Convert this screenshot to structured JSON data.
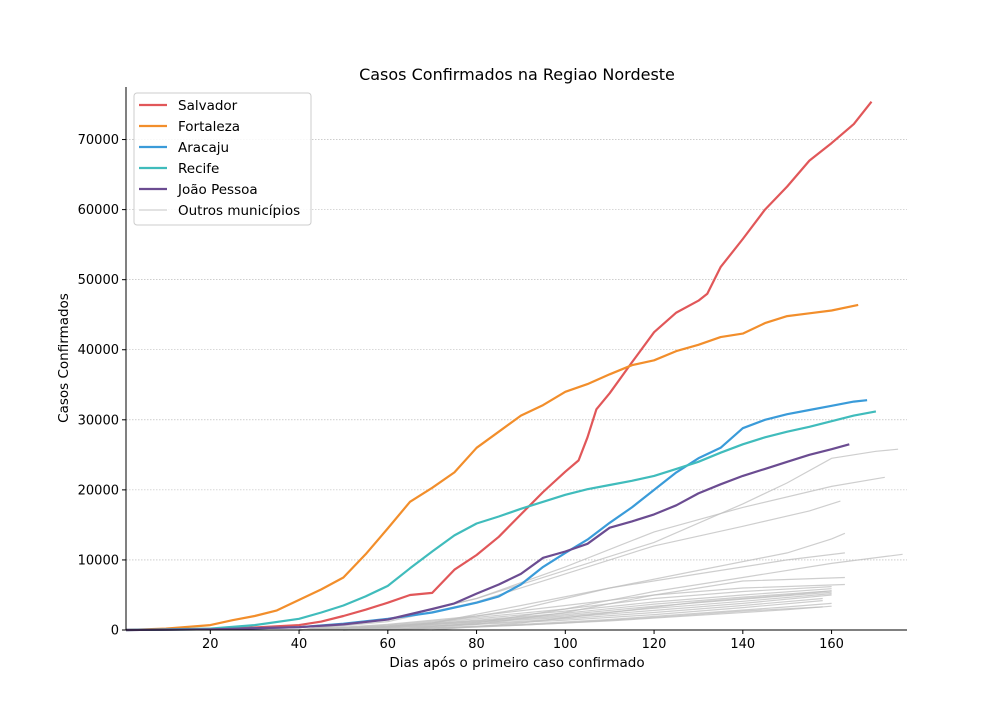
{
  "chart_data": {
    "type": "line",
    "title": "Casos Confirmados na Regiao Nordeste",
    "xlabel": "Dias após o primeiro caso confirmado",
    "ylabel": "Casos Confirmados",
    "xlim": [
      1,
      177
    ],
    "ylim": [
      0,
      77500
    ],
    "x_ticks": [
      20,
      40,
      60,
      80,
      100,
      120,
      140,
      160
    ],
    "y_ticks": [
      0,
      10000,
      20000,
      30000,
      40000,
      50000,
      60000,
      70000
    ],
    "grid": "horizontal dotted",
    "legend_position": "top-left",
    "series": [
      {
        "name": "Salvador",
        "color": "#e15759",
        "x": [
          1,
          10,
          20,
          30,
          40,
          45,
          50,
          55,
          60,
          65,
          70,
          75,
          80,
          85,
          90,
          95,
          100,
          103,
          105,
          107,
          110,
          115,
          120,
          125,
          130,
          132,
          135,
          140,
          145,
          150,
          155,
          160,
          165,
          169
        ],
        "y": [
          0,
          50,
          150,
          350,
          700,
          1200,
          2000,
          2900,
          3900,
          5000,
          5300,
          8600,
          10700,
          13300,
          16500,
          19700,
          22600,
          24200,
          27500,
          31500,
          33800,
          38200,
          42500,
          45300,
          47000,
          48000,
          51800,
          55800,
          60000,
          63300,
          67000,
          69500,
          72200,
          75400
        ]
      },
      {
        "name": "Fortaleza",
        "color": "#f28e2b",
        "x": [
          1,
          10,
          20,
          25,
          30,
          35,
          40,
          45,
          50,
          55,
          60,
          65,
          70,
          75,
          80,
          85,
          90,
          95,
          100,
          105,
          110,
          115,
          120,
          125,
          130,
          135,
          140,
          145,
          150,
          155,
          160,
          166
        ],
        "y": [
          0,
          200,
          700,
          1400,
          2000,
          2800,
          4300,
          5800,
          7500,
          10800,
          14500,
          18300,
          20300,
          22500,
          26000,
          28300,
          30600,
          32100,
          34000,
          35100,
          36500,
          37800,
          38500,
          39800,
          40700,
          41800,
          42300,
          43800,
          44800,
          45200,
          45600,
          46400
        ]
      },
      {
        "name": "Aracaju",
        "color": "#3a9bd9",
        "x": [
          1,
          20,
          40,
          50,
          60,
          70,
          80,
          85,
          90,
          95,
          100,
          105,
          110,
          115,
          120,
          125,
          130,
          135,
          140,
          145,
          150,
          155,
          160,
          165,
          168
        ],
        "y": [
          0,
          100,
          400,
          900,
          1600,
          2500,
          3900,
          4800,
          6500,
          9000,
          11000,
          12900,
          15300,
          17500,
          20000,
          22500,
          24500,
          26000,
          28800,
          30000,
          30800,
          31400,
          32000,
          32600,
          32800
        ]
      },
      {
        "name": "Recife",
        "color": "#40bcbc",
        "x": [
          1,
          20,
          30,
          40,
          45,
          50,
          55,
          60,
          65,
          70,
          75,
          80,
          85,
          90,
          95,
          100,
          105,
          110,
          115,
          120,
          125,
          130,
          135,
          140,
          145,
          150,
          155,
          160,
          165,
          170
        ],
        "y": [
          0,
          200,
          700,
          1600,
          2500,
          3500,
          4800,
          6300,
          8800,
          11200,
          13500,
          15200,
          16200,
          17300,
          18300,
          19300,
          20100,
          20700,
          21300,
          22000,
          23000,
          24000,
          25300,
          26500,
          27500,
          28300,
          29000,
          29800,
          30600,
          31200
        ]
      },
      {
        "name": "João Pessoa",
        "color": "#6b4c91",
        "x": [
          1,
          20,
          40,
          50,
          60,
          70,
          75,
          80,
          85,
          90,
          95,
          100,
          105,
          110,
          115,
          120,
          125,
          130,
          135,
          140,
          145,
          150,
          155,
          160,
          164
        ],
        "y": [
          0,
          100,
          400,
          800,
          1500,
          3000,
          3800,
          5200,
          6500,
          8000,
          10300,
          11200,
          12300,
          14600,
          15500,
          16500,
          17800,
          19500,
          20800,
          22000,
          23000,
          24000,
          25000,
          25800,
          26500
        ]
      }
    ],
    "others": {
      "name": "Outros municípios",
      "color": "#bdbdbd",
      "legend_color": "#d9d9d9",
      "series": [
        {
          "x": [
            40,
            60,
            80,
            100,
            120,
            140,
            150,
            160,
            170,
            175
          ],
          "y": [
            0,
            1500,
            4500,
            8500,
            12500,
            18000,
            21000,
            24500,
            25500,
            25800
          ]
        },
        {
          "x": [
            40,
            60,
            80,
            100,
            120,
            140,
            160,
            172
          ],
          "y": [
            0,
            1500,
            4500,
            9000,
            14000,
            17500,
            20500,
            21800
          ]
        },
        {
          "x": [
            40,
            60,
            80,
            100,
            120,
            140,
            155,
            162
          ],
          "y": [
            0,
            1200,
            4000,
            8000,
            12000,
            14800,
            17000,
            18400
          ]
        },
        {
          "x": [
            50,
            70,
            90,
            110,
            130,
            150,
            160,
            163
          ],
          "y": [
            0,
            1000,
            3500,
            6000,
            8500,
            11000,
            13000,
            13800
          ]
        },
        {
          "x": [
            50,
            70,
            90,
            110,
            130,
            150,
            163
          ],
          "y": [
            0,
            1000,
            3000,
            6000,
            8000,
            10000,
            11000
          ]
        },
        {
          "x": [
            60,
            80,
            100,
            120,
            140,
            160,
            176
          ],
          "y": [
            0,
            1000,
            3000,
            5500,
            7500,
            9500,
            10800
          ]
        },
        {
          "x": [
            60,
            80,
            100,
            120,
            140,
            163
          ],
          "y": [
            0,
            800,
            2500,
            5000,
            7000,
            7500
          ]
        },
        {
          "x": [
            40,
            60,
            80,
            100,
            120,
            140,
            163
          ],
          "y": [
            0,
            800,
            2000,
            3500,
            5000,
            6000,
            6500
          ]
        },
        {
          "x": [
            40,
            60,
            80,
            100,
            120,
            140,
            160
          ],
          "y": [
            0,
            700,
            1800,
            3000,
            4500,
            5500,
            6200
          ]
        },
        {
          "x": [
            40,
            60,
            80,
            100,
            120,
            140,
            160
          ],
          "y": [
            0,
            600,
            1600,
            2700,
            4000,
            5000,
            5900
          ]
        },
        {
          "x": [
            40,
            60,
            80,
            100,
            120,
            140,
            160
          ],
          "y": [
            0,
            500,
            1400,
            2400,
            3700,
            4700,
            5600
          ]
        },
        {
          "x": [
            40,
            60,
            80,
            100,
            120,
            140,
            160
          ],
          "y": [
            0,
            500,
            1300,
            2200,
            3400,
            4400,
            5400
          ]
        },
        {
          "x": [
            40,
            60,
            80,
            100,
            120,
            140,
            160
          ],
          "y": [
            0,
            400,
            1200,
            2000,
            3100,
            4100,
            5200
          ]
        },
        {
          "x": [
            40,
            60,
            80,
            100,
            120,
            140,
            160
          ],
          "y": [
            0,
            400,
            1100,
            1800,
            2800,
            3800,
            5000
          ]
        },
        {
          "x": [
            40,
            60,
            80,
            100,
            120,
            140,
            158
          ],
          "y": [
            0,
            300,
            900,
            1600,
            2500,
            3500,
            4500
          ]
        },
        {
          "x": [
            40,
            60,
            80,
            100,
            120,
            140,
            158
          ],
          "y": [
            0,
            300,
            800,
            1400,
            2200,
            3200,
            4200
          ]
        },
        {
          "x": [
            50,
            70,
            90,
            110,
            130,
            150,
            160
          ],
          "y": [
            0,
            300,
            800,
            1500,
            2400,
            3300,
            3800
          ]
        },
        {
          "x": [
            50,
            70,
            90,
            110,
            130,
            150,
            160
          ],
          "y": [
            0,
            250,
            700,
            1300,
            2100,
            2900,
            3400
          ]
        },
        {
          "x": [
            60,
            80,
            100,
            120,
            140,
            158
          ],
          "y": [
            0,
            400,
            1000,
            1800,
            2700,
            3300
          ]
        },
        {
          "x": [
            70,
            90,
            110,
            130,
            150,
            160
          ],
          "y": [
            0,
            1000,
            2500,
            4000,
            5000,
            5600
          ]
        }
      ]
    }
  }
}
